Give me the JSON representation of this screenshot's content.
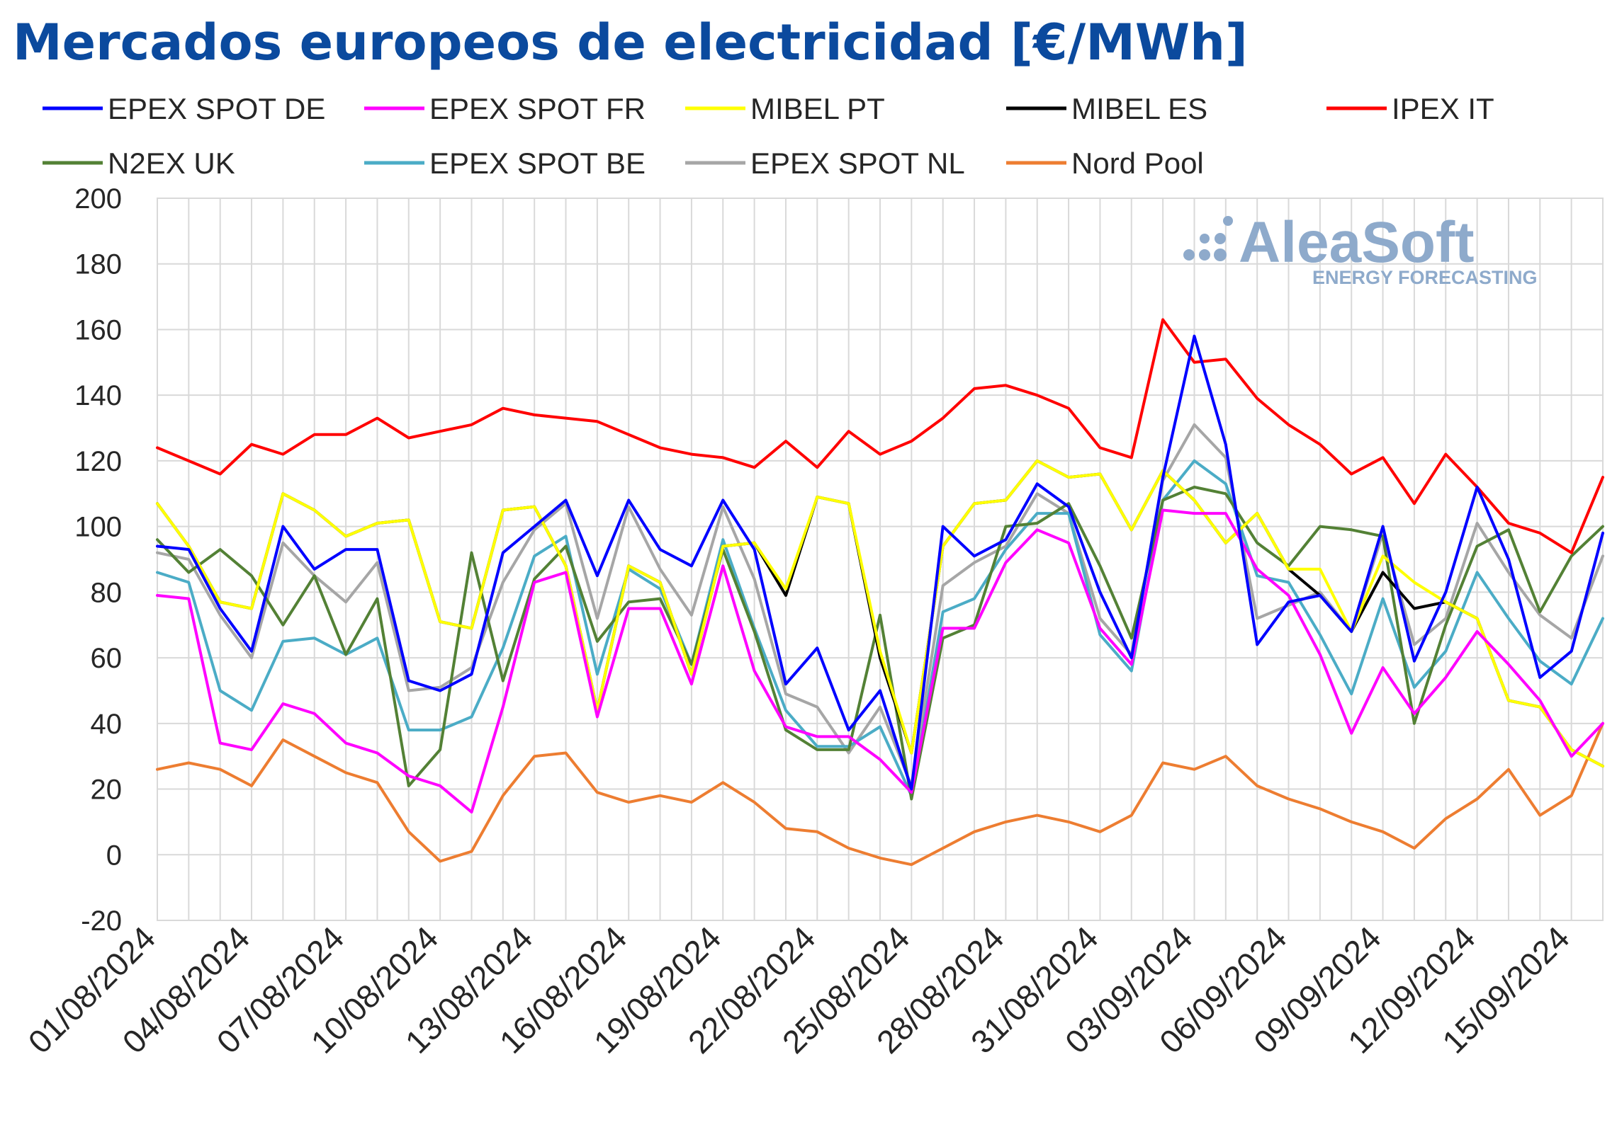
{
  "chart_data": {
    "type": "line",
    "title": "Mercados europeos de electricidad [€/MWh]",
    "xlabel": "",
    "ylabel": "",
    "ylim": [
      -20,
      200
    ],
    "yticks": [
      -20,
      0,
      20,
      40,
      60,
      80,
      100,
      120,
      140,
      160,
      180,
      200
    ],
    "grid": true,
    "legend_position": "top",
    "x": [
      "01/08/2024",
      "02/08/2024",
      "03/08/2024",
      "04/08/2024",
      "05/08/2024",
      "06/08/2024",
      "07/08/2024",
      "08/08/2024",
      "09/08/2024",
      "10/08/2024",
      "11/08/2024",
      "12/08/2024",
      "13/08/2024",
      "14/08/2024",
      "15/08/2024",
      "16/08/2024",
      "17/08/2024",
      "18/08/2024",
      "19/08/2024",
      "20/08/2024",
      "21/08/2024",
      "22/08/2024",
      "23/08/2024",
      "24/08/2024",
      "25/08/2024",
      "26/08/2024",
      "27/08/2024",
      "28/08/2024",
      "29/08/2024",
      "30/08/2024",
      "31/08/2024",
      "01/09/2024",
      "02/09/2024",
      "03/09/2024",
      "04/09/2024",
      "05/09/2024",
      "06/09/2024",
      "07/09/2024",
      "08/09/2024",
      "09/09/2024",
      "10/09/2024",
      "11/09/2024",
      "12/09/2024",
      "13/09/2024",
      "14/09/2024",
      "15/09/2024",
      "16/09/2024"
    ],
    "x_tick_labels": [
      "01/08/2024",
      "04/08/2024",
      "07/08/2024",
      "10/08/2024",
      "13/08/2024",
      "16/08/2024",
      "19/08/2024",
      "22/08/2024",
      "25/08/2024",
      "28/08/2024",
      "31/08/2024",
      "03/09/2024",
      "06/09/2024",
      "09/09/2024",
      "12/09/2024",
      "15/09/2024"
    ],
    "series": [
      {
        "name": "EPEX SPOT DE",
        "color": "#0000ff",
        "values": [
          94,
          93,
          75,
          62,
          100,
          87,
          93,
          93,
          53,
          50,
          55,
          92,
          100,
          108,
          85,
          108,
          93,
          88,
          108,
          93,
          52,
          63,
          38,
          50,
          20,
          100,
          91,
          96,
          113,
          106,
          80,
          60,
          115,
          158,
          125,
          64,
          77,
          79,
          68,
          100,
          59,
          80,
          112,
          90,
          54,
          62,
          98
        ]
      },
      {
        "name": "EPEX SPOT FR",
        "color": "#ff00ff",
        "values": [
          79,
          78,
          34,
          32,
          46,
          43,
          34,
          31,
          24,
          21,
          13,
          45,
          83,
          86,
          42,
          75,
          75,
          52,
          88,
          56,
          39,
          36,
          36,
          29,
          19,
          69,
          69,
          89,
          99,
          95,
          69,
          58,
          105,
          104,
          104,
          87,
          79,
          61,
          37,
          57,
          43,
          54,
          68,
          58,
          47,
          30,
          40
        ]
      },
      {
        "name": "MIBEL PT",
        "color": "#ffff00",
        "values": [
          107,
          94,
          77,
          75,
          110,
          105,
          97,
          101,
          102,
          71,
          69,
          105,
          106,
          88,
          44,
          88,
          83,
          55,
          94,
          95,
          81,
          109,
          107,
          62,
          31,
          94,
          107,
          108,
          120,
          115,
          116,
          99,
          117,
          108,
          95,
          104,
          87,
          87,
          68,
          91,
          83,
          77,
          72,
          47,
          45,
          32,
          27
        ]
      },
      {
        "name": "MIBEL ES",
        "color": "#000000",
        "values": [
          107,
          94,
          77,
          75,
          110,
          105,
          97,
          101,
          102,
          71,
          69,
          105,
          106,
          88,
          44,
          88,
          83,
          55,
          94,
          95,
          79,
          109,
          107,
          60,
          31,
          94,
          107,
          108,
          120,
          115,
          116,
          99,
          117,
          108,
          95,
          104,
          87,
          79,
          68,
          86,
          75,
          77,
          72,
          47,
          45,
          32,
          27
        ]
      },
      {
        "name": "IPEX IT",
        "color": "#ff0000",
        "values": [
          124,
          120,
          116,
          125,
          122,
          128,
          128,
          133,
          127,
          129,
          131,
          136,
          134,
          133,
          132,
          128,
          124,
          122,
          121,
          118,
          126,
          118,
          129,
          122,
          126,
          133,
          142,
          143,
          140,
          136,
          124,
          121,
          163,
          150,
          151,
          139,
          131,
          125,
          116,
          121,
          107,
          122,
          112,
          101,
          98,
          92,
          115
        ]
      },
      {
        "name": "N2EX UK",
        "color": "#538135",
        "values": [
          96,
          86,
          93,
          85,
          70,
          85,
          61,
          78,
          21,
          32,
          92,
          53,
          84,
          94,
          65,
          77,
          78,
          58,
          93,
          68,
          38,
          32,
          32,
          73,
          17,
          66,
          70,
          100,
          101,
          107,
          88,
          66,
          108,
          112,
          110,
          95,
          88,
          100,
          99,
          97,
          40,
          70,
          94,
          99,
          74,
          91,
          100
        ]
      },
      {
        "name": "EPEX SPOT BE",
        "color": "#4bacc6",
        "values": [
          86,
          83,
          50,
          44,
          65,
          66,
          61,
          66,
          38,
          38,
          42,
          63,
          91,
          97,
          55,
          87,
          81,
          58,
          96,
          69,
          44,
          33,
          33,
          39,
          18,
          74,
          78,
          93,
          104,
          104,
          67,
          56,
          108,
          120,
          113,
          85,
          83,
          67,
          49,
          78,
          51,
          62,
          86,
          72,
          59,
          52,
          72
        ]
      },
      {
        "name": "EPEX SPOT NL",
        "color": "#a6a6a6",
        "values": [
          92,
          90,
          73,
          60,
          95,
          85,
          77,
          89,
          50,
          51,
          57,
          83,
          99,
          107,
          72,
          106,
          87,
          73,
          106,
          84,
          49,
          45,
          31,
          45,
          21,
          82,
          89,
          94,
          110,
          104,
          72,
          61,
          114,
          131,
          121,
          72,
          76,
          80,
          68,
          98,
          64,
          72,
          101,
          86,
          73,
          66,
          91
        ]
      },
      {
        "name": "Nord Pool",
        "color": "#ed7d31",
        "values": [
          26,
          28,
          26,
          21,
          35,
          30,
          25,
          22,
          7,
          -2,
          1,
          18,
          30,
          31,
          19,
          16,
          18,
          16,
          22,
          16,
          8,
          7,
          2,
          -1,
          -3,
          2,
          7,
          10,
          12,
          10,
          7,
          12,
          28,
          26,
          30,
          21,
          17,
          14,
          10,
          7,
          2,
          11,
          17,
          26,
          12,
          18,
          40
        ]
      }
    ]
  },
  "watermark": {
    "brand": "AleaSoft",
    "tagline": "ENERGY FORECASTING",
    "color": "#8eaacb"
  },
  "colors": {
    "title": "#0b4a9e",
    "grid": "#d9d9d9",
    "axis_text": "#262626"
  }
}
